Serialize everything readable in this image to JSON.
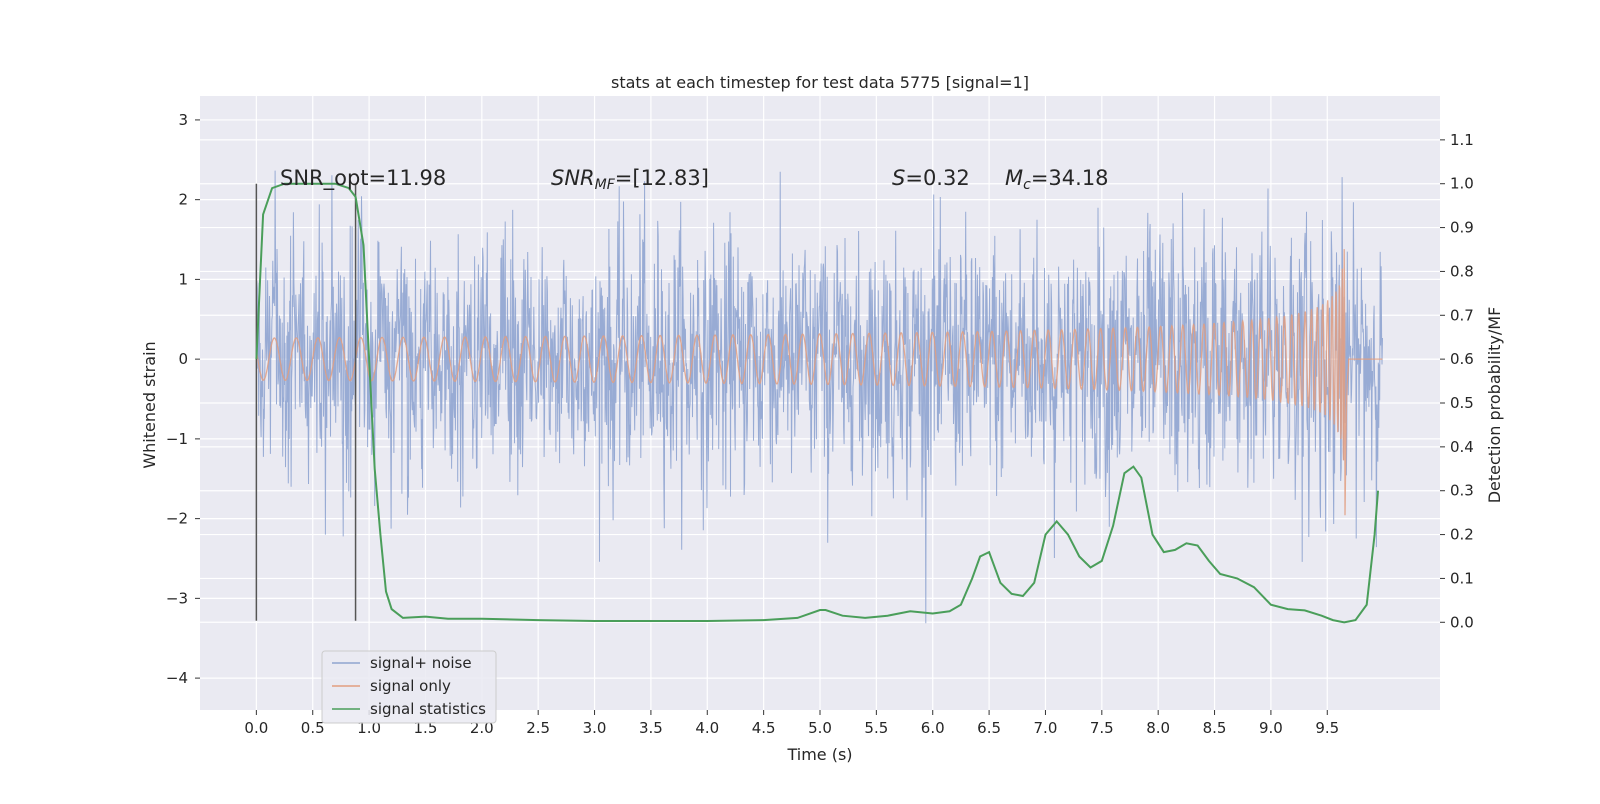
{
  "chart_data": {
    "type": "line",
    "title": "stats at each timestep for test data 5775 [signal=1]",
    "xlabel": "Time (s)",
    "ylabel_left": "Whitened strain",
    "ylabel_right": "Detection probability/MF",
    "xlim": [
      -0.5,
      10.5
    ],
    "ylim_left": [
      -4.4,
      3.3
    ],
    "ylim_right": [
      -0.2,
      1.2
    ],
    "x_ticks": [
      "0.0",
      "0.5",
      "1.0",
      "1.5",
      "2.0",
      "2.5",
      "3.0",
      "3.5",
      "4.0",
      "4.5",
      "5.0",
      "5.5",
      "6.0",
      "6.5",
      "7.0",
      "7.5",
      "8.0",
      "8.5",
      "9.0",
      "9.5"
    ],
    "y_ticks_left": [
      "3",
      "2",
      "1",
      "0",
      "−1",
      "−2",
      "−3",
      "−4"
    ],
    "y_ticks_right": [
      "1.1",
      "1.0",
      "0.9",
      "0.8",
      "0.7",
      "0.6",
      "0.5",
      "0.4",
      "0.3",
      "0.2",
      "0.1",
      "0.0"
    ],
    "grid": true,
    "legend_position": "lower-left",
    "annotations": {
      "snr_opt": "SNR_opt=11.98",
      "snr_mf_main": "SNR",
      "snr_mf_sub": "MF",
      "snr_mf_val": "=[12.83]",
      "s_main": "S",
      "s_val": "=0.32",
      "mc_main": "M",
      "mc_sub": "c",
      "mc_val": "=34.18"
    },
    "vertical_lines_x": [
      0.0,
      0.88
    ],
    "series": [
      {
        "name": "signal+ noise",
        "color": "#8fa4d0",
        "description_kind": "noise band",
        "t_range": [
          0.0,
          9.99
        ],
        "envelope_sigma": 0.75
      },
      {
        "name": "signal only",
        "color": "#e29e80",
        "description_kind": "chirp",
        "t_merger": 9.66,
        "peak_amplitude": 2.2
      },
      {
        "name": "signal statistics",
        "color": "#4a9e5a",
        "axis": "right",
        "points": [
          [
            0.0,
            0.6
          ],
          [
            0.06,
            0.93
          ],
          [
            0.14,
            0.99
          ],
          [
            0.25,
            1.0
          ],
          [
            0.5,
            1.0
          ],
          [
            0.7,
            1.0
          ],
          [
            0.82,
            0.99
          ],
          [
            0.88,
            0.97
          ],
          [
            0.95,
            0.86
          ],
          [
            1.0,
            0.6
          ],
          [
            1.05,
            0.35
          ],
          [
            1.1,
            0.2
          ],
          [
            1.15,
            0.07
          ],
          [
            1.2,
            0.03
          ],
          [
            1.3,
            0.01
          ],
          [
            1.5,
            0.013
          ],
          [
            1.7,
            0.008
          ],
          [
            2.0,
            0.008
          ],
          [
            2.5,
            0.005
          ],
          [
            3.0,
            0.003
          ],
          [
            3.5,
            0.003
          ],
          [
            4.0,
            0.003
          ],
          [
            4.5,
            0.005
          ],
          [
            4.8,
            0.01
          ],
          [
            5.0,
            0.028
          ],
          [
            5.05,
            0.028
          ],
          [
            5.2,
            0.015
          ],
          [
            5.4,
            0.01
          ],
          [
            5.6,
            0.015
          ],
          [
            5.8,
            0.025
          ],
          [
            6.0,
            0.02
          ],
          [
            6.15,
            0.025
          ],
          [
            6.25,
            0.04
          ],
          [
            6.35,
            0.1
          ],
          [
            6.42,
            0.15
          ],
          [
            6.5,
            0.16
          ],
          [
            6.6,
            0.09
          ],
          [
            6.7,
            0.065
          ],
          [
            6.8,
            0.06
          ],
          [
            6.9,
            0.09
          ],
          [
            7.0,
            0.2
          ],
          [
            7.1,
            0.23
          ],
          [
            7.2,
            0.2
          ],
          [
            7.3,
            0.15
          ],
          [
            7.4,
            0.125
          ],
          [
            7.5,
            0.14
          ],
          [
            7.6,
            0.22
          ],
          [
            7.7,
            0.34
          ],
          [
            7.78,
            0.355
          ],
          [
            7.85,
            0.33
          ],
          [
            7.95,
            0.2
          ],
          [
            8.05,
            0.16
          ],
          [
            8.15,
            0.165
          ],
          [
            8.25,
            0.18
          ],
          [
            8.35,
            0.175
          ],
          [
            8.45,
            0.14
          ],
          [
            8.55,
            0.11
          ],
          [
            8.7,
            0.1
          ],
          [
            8.85,
            0.08
          ],
          [
            9.0,
            0.04
          ],
          [
            9.15,
            0.03
          ],
          [
            9.3,
            0.027
          ],
          [
            9.45,
            0.015
          ],
          [
            9.55,
            0.005
          ],
          [
            9.65,
            0.0
          ],
          [
            9.75,
            0.005
          ],
          [
            9.85,
            0.04
          ],
          [
            9.92,
            0.2
          ],
          [
            9.95,
            0.3
          ]
        ]
      }
    ]
  },
  "colors": {
    "axes_bg": "#eaeaf2",
    "grid": "#ffffff",
    "vline": "#555555"
  }
}
